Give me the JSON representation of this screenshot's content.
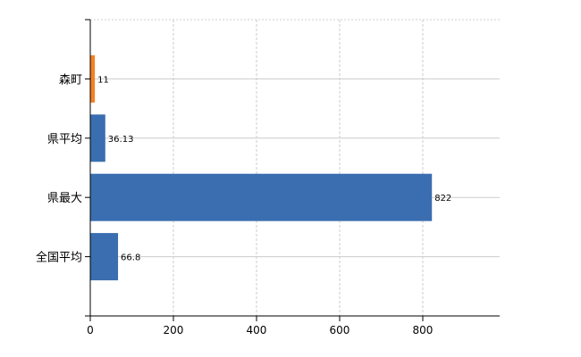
{
  "chart_data": {
    "type": "bar",
    "orientation": "horizontal",
    "categories": [
      "森町",
      "県平均",
      "県最大",
      "全国平均"
    ],
    "values": [
      11,
      36.13,
      822,
      66.8
    ],
    "data_labels": [
      "11",
      "36.13",
      "822",
      "66.8"
    ],
    "colors": [
      "#f58025",
      "#3a6eb0",
      "#3a6eb0",
      "#3a6eb0"
    ],
    "xticks": [
      0,
      200,
      400,
      600,
      800
    ],
    "xtick_labels": [
      "0",
      "200",
      "400",
      "600",
      "800"
    ],
    "xlim": [
      0,
      985
    ],
    "title": "",
    "xlabel": "",
    "ylabel": "",
    "grid": true,
    "grid_color": "#cccccc"
  }
}
